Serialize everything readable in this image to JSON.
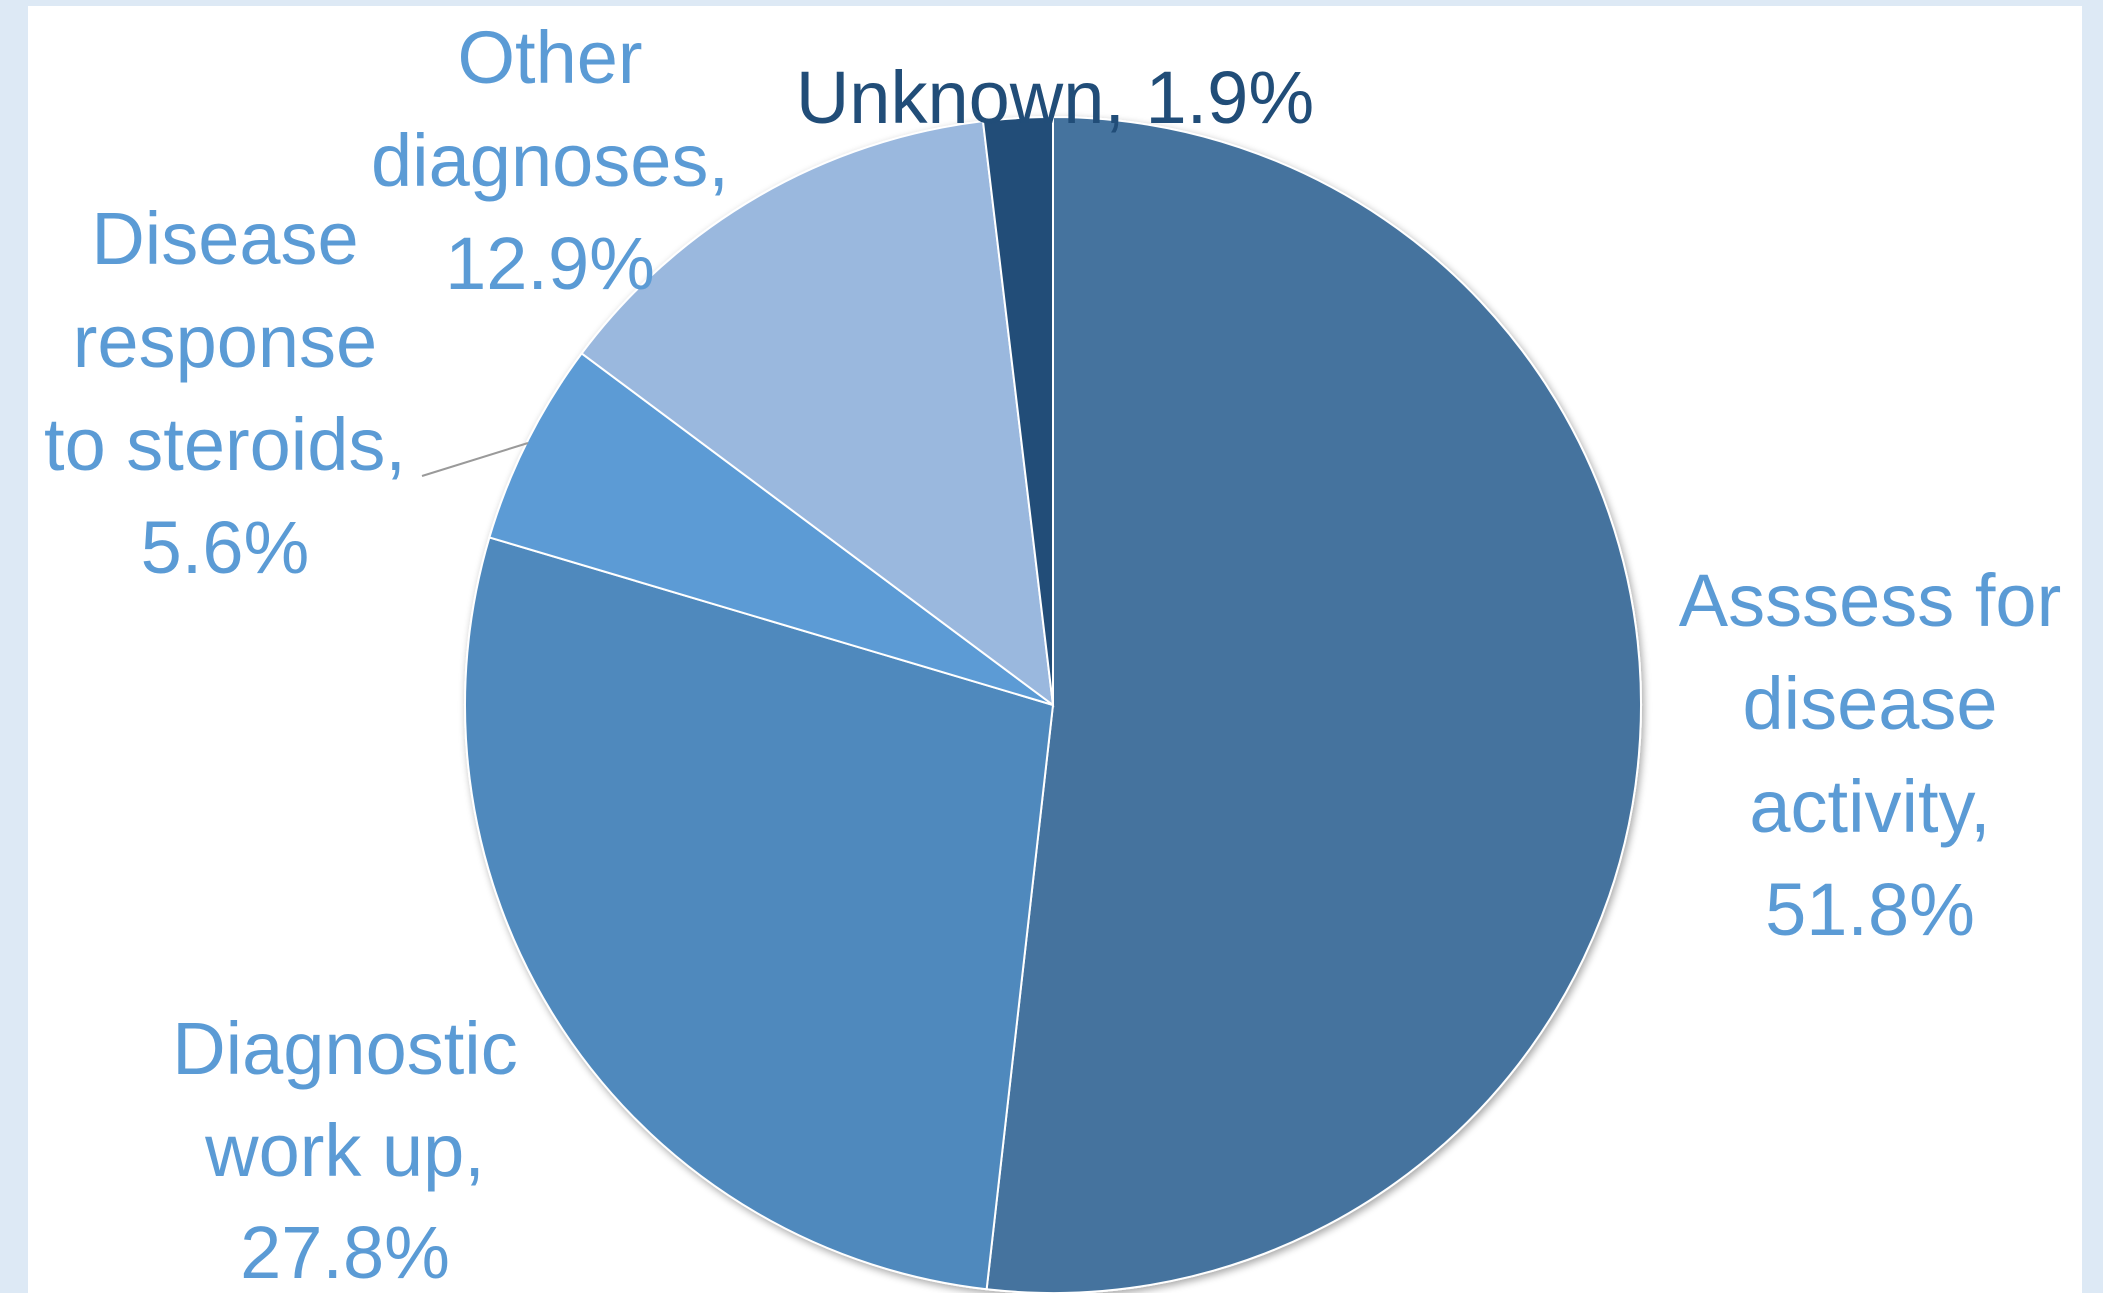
{
  "chart_data": {
    "type": "pie",
    "title": "",
    "start_angle_deg": 0,
    "direction": "clockwise",
    "slices": [
      {
        "label": "Asssess for disease activity,",
        "value": 51.8,
        "value_text": "51.8%",
        "color": "#44739e",
        "label_color": "#5b9bd5",
        "label_lines": [
          "Asssess for",
          "disease",
          "activity,",
          "51.8%"
        ]
      },
      {
        "label": "Diagnostic work up,",
        "value": 27.8,
        "value_text": "27.8%",
        "color": "#4f89bd",
        "label_color": "#5b9bd5",
        "label_lines": [
          "Diagnostic",
          "work up,",
          "27.8%"
        ]
      },
      {
        "label": "Disease response to steroids,",
        "value": 5.6,
        "value_text": "5.6%",
        "color": "#5b9bd5",
        "label_color": "#5b9bd5",
        "label_lines": [
          "Disease",
          "response",
          "to steroids,",
          "5.6%"
        ]
      },
      {
        "label": "Other diagnoses,",
        "value": 12.9,
        "value_text": "12.9%",
        "color": "#9ab8de",
        "label_color": "#5b9bd5",
        "label_lines": [
          "Other",
          "diagnoses,",
          "12.9%"
        ]
      },
      {
        "label": "Unknown,",
        "value": 1.9,
        "value_text": "1.9%",
        "color": "#214d78",
        "label_color": "#214d78",
        "label_lines": [
          "Unknown, 1.9%"
        ]
      }
    ]
  }
}
